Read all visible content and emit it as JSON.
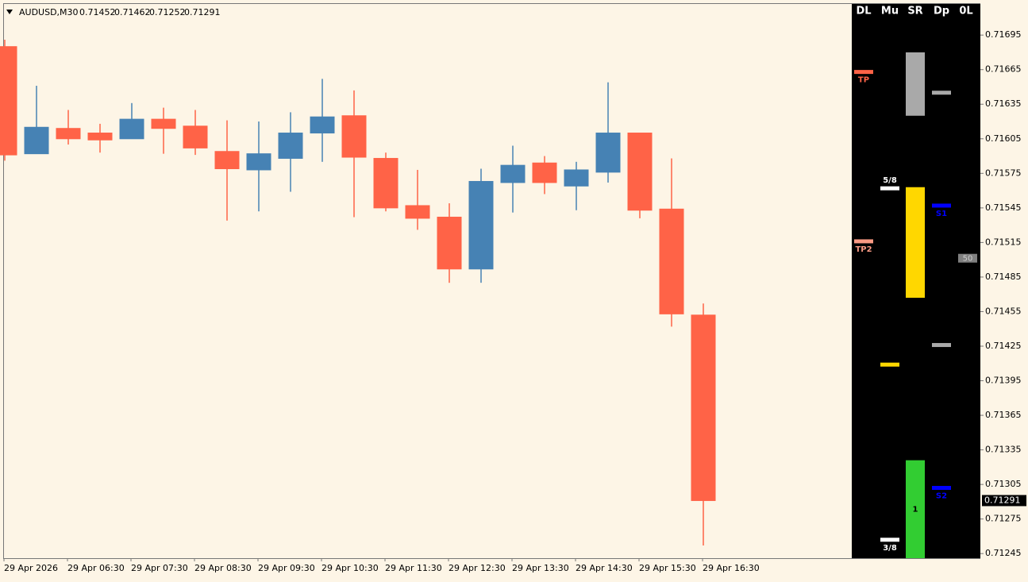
{
  "chart_data": {
    "type": "candlestick",
    "symbol": "AUDUSD,M30",
    "categories": [
      "29 Apr 2026",
      null,
      "29 Apr 06:30",
      null,
      "29 Apr 07:30",
      null,
      "29 Apr 08:30",
      null,
      "29 Apr 09:30",
      null,
      "29 Apr 10:30",
      null,
      "29 Apr 11:30",
      null,
      "29 Apr 12:30",
      null,
      "29 Apr 13:30",
      null,
      "29 Apr 14:30",
      null,
      "29 Apr 15:30",
      null,
      "29 Apr 16:30"
    ],
    "open": [
      0.71685,
      0.71592,
      0.71614,
      0.7161,
      0.71605,
      0.71622,
      0.71616,
      0.71594,
      0.71578,
      0.71588,
      0.7161,
      0.71625,
      0.71588,
      0.71547,
      0.71537,
      0.71492,
      0.71567,
      0.71584,
      0.71564,
      0.71576,
      0.7161,
      0.71544,
      0.71452
    ],
    "high": [
      0.71691,
      0.71651,
      0.7163,
      0.71618,
      0.71636,
      0.71632,
      0.7163,
      0.71621,
      0.7162,
      0.71628,
      0.71657,
      0.71647,
      0.71593,
      0.71578,
      0.71549,
      0.71579,
      0.71599,
      0.7159,
      0.71585,
      0.71654,
      0.7161,
      0.71588,
      0.71462
    ],
    "low": [
      0.71586,
      0.71592,
      0.716,
      0.71593,
      0.71605,
      0.71592,
      0.71591,
      0.71534,
      0.71542,
      0.71559,
      0.71585,
      0.71537,
      0.71542,
      0.71526,
      0.7148,
      0.7148,
      0.71541,
      0.71557,
      0.71543,
      0.71567,
      0.71536,
      0.71442,
      0.71252
    ],
    "close": [
      0.71591,
      0.71615,
      0.71605,
      0.71604,
      0.71622,
      0.71614,
      0.71597,
      0.71579,
      0.71592,
      0.7161,
      0.71624,
      0.71589,
      0.71545,
      0.71536,
      0.71492,
      0.71568,
      0.71582,
      0.71567,
      0.71578,
      0.7161,
      0.71543,
      0.71453,
      0.71291
    ],
    "up_color": "#4682b4",
    "down_color": "#ff6347",
    "ylim": [
      0.71241,
      0.71722
    ],
    "yticks": [
      0.71695,
      0.71665,
      0.71635,
      0.71605,
      0.71575,
      0.71545,
      0.71515,
      0.71485,
      0.71455,
      0.71425,
      0.71395,
      0.71365,
      0.71335,
      0.71305,
      0.71275,
      0.71245
    ],
    "panel": {
      "columns": [
        {
          "name": "DL",
          "levels": [
            {
              "label": "TP",
              "value": 0.71663,
              "color": "#ff6347"
            },
            {
              "label": "TP2",
              "value": 0.71516,
              "color": "#fa9a84"
            }
          ]
        },
        {
          "name": "Mu",
          "levels": [
            {
              "label": "5/8",
              "value": 0.71562,
              "color": "#ffffff"
            },
            {
              "value": 0.71409,
              "color": "#ffd700"
            },
            {
              "label": "3/8",
              "value": 0.71257,
              "color": "#ffffff"
            }
          ]
        },
        {
          "name": "SR",
          "levels": [
            {
              "from": 0.71625,
              "to": 0.7168,
              "color": "#a9a9a9"
            },
            {
              "from": 0.71467,
              "to": 0.71563,
              "color": "#ffd700"
            },
            {
              "label": "1",
              "from": 0.71241,
              "to": 0.71326,
              "color": "#32cd32"
            }
          ]
        },
        {
          "name": "Dp",
          "levels": [
            {
              "value": 0.71645,
              "color": "#a9a9a9"
            },
            {
              "label": "S1",
              "value": 0.71547,
              "color": "#0000ff"
            },
            {
              "value": 0.71426,
              "color": "#a9a9a9"
            },
            {
              "label": "S2",
              "value": 0.71302,
              "color": "#0000ff"
            }
          ]
        },
        {
          "name": "0L",
          "levels": [
            {
              "label": "50",
              "value": 0.71501,
              "color": "#808080",
              "shape": "tag"
            }
          ]
        }
      ]
    }
  }
}
